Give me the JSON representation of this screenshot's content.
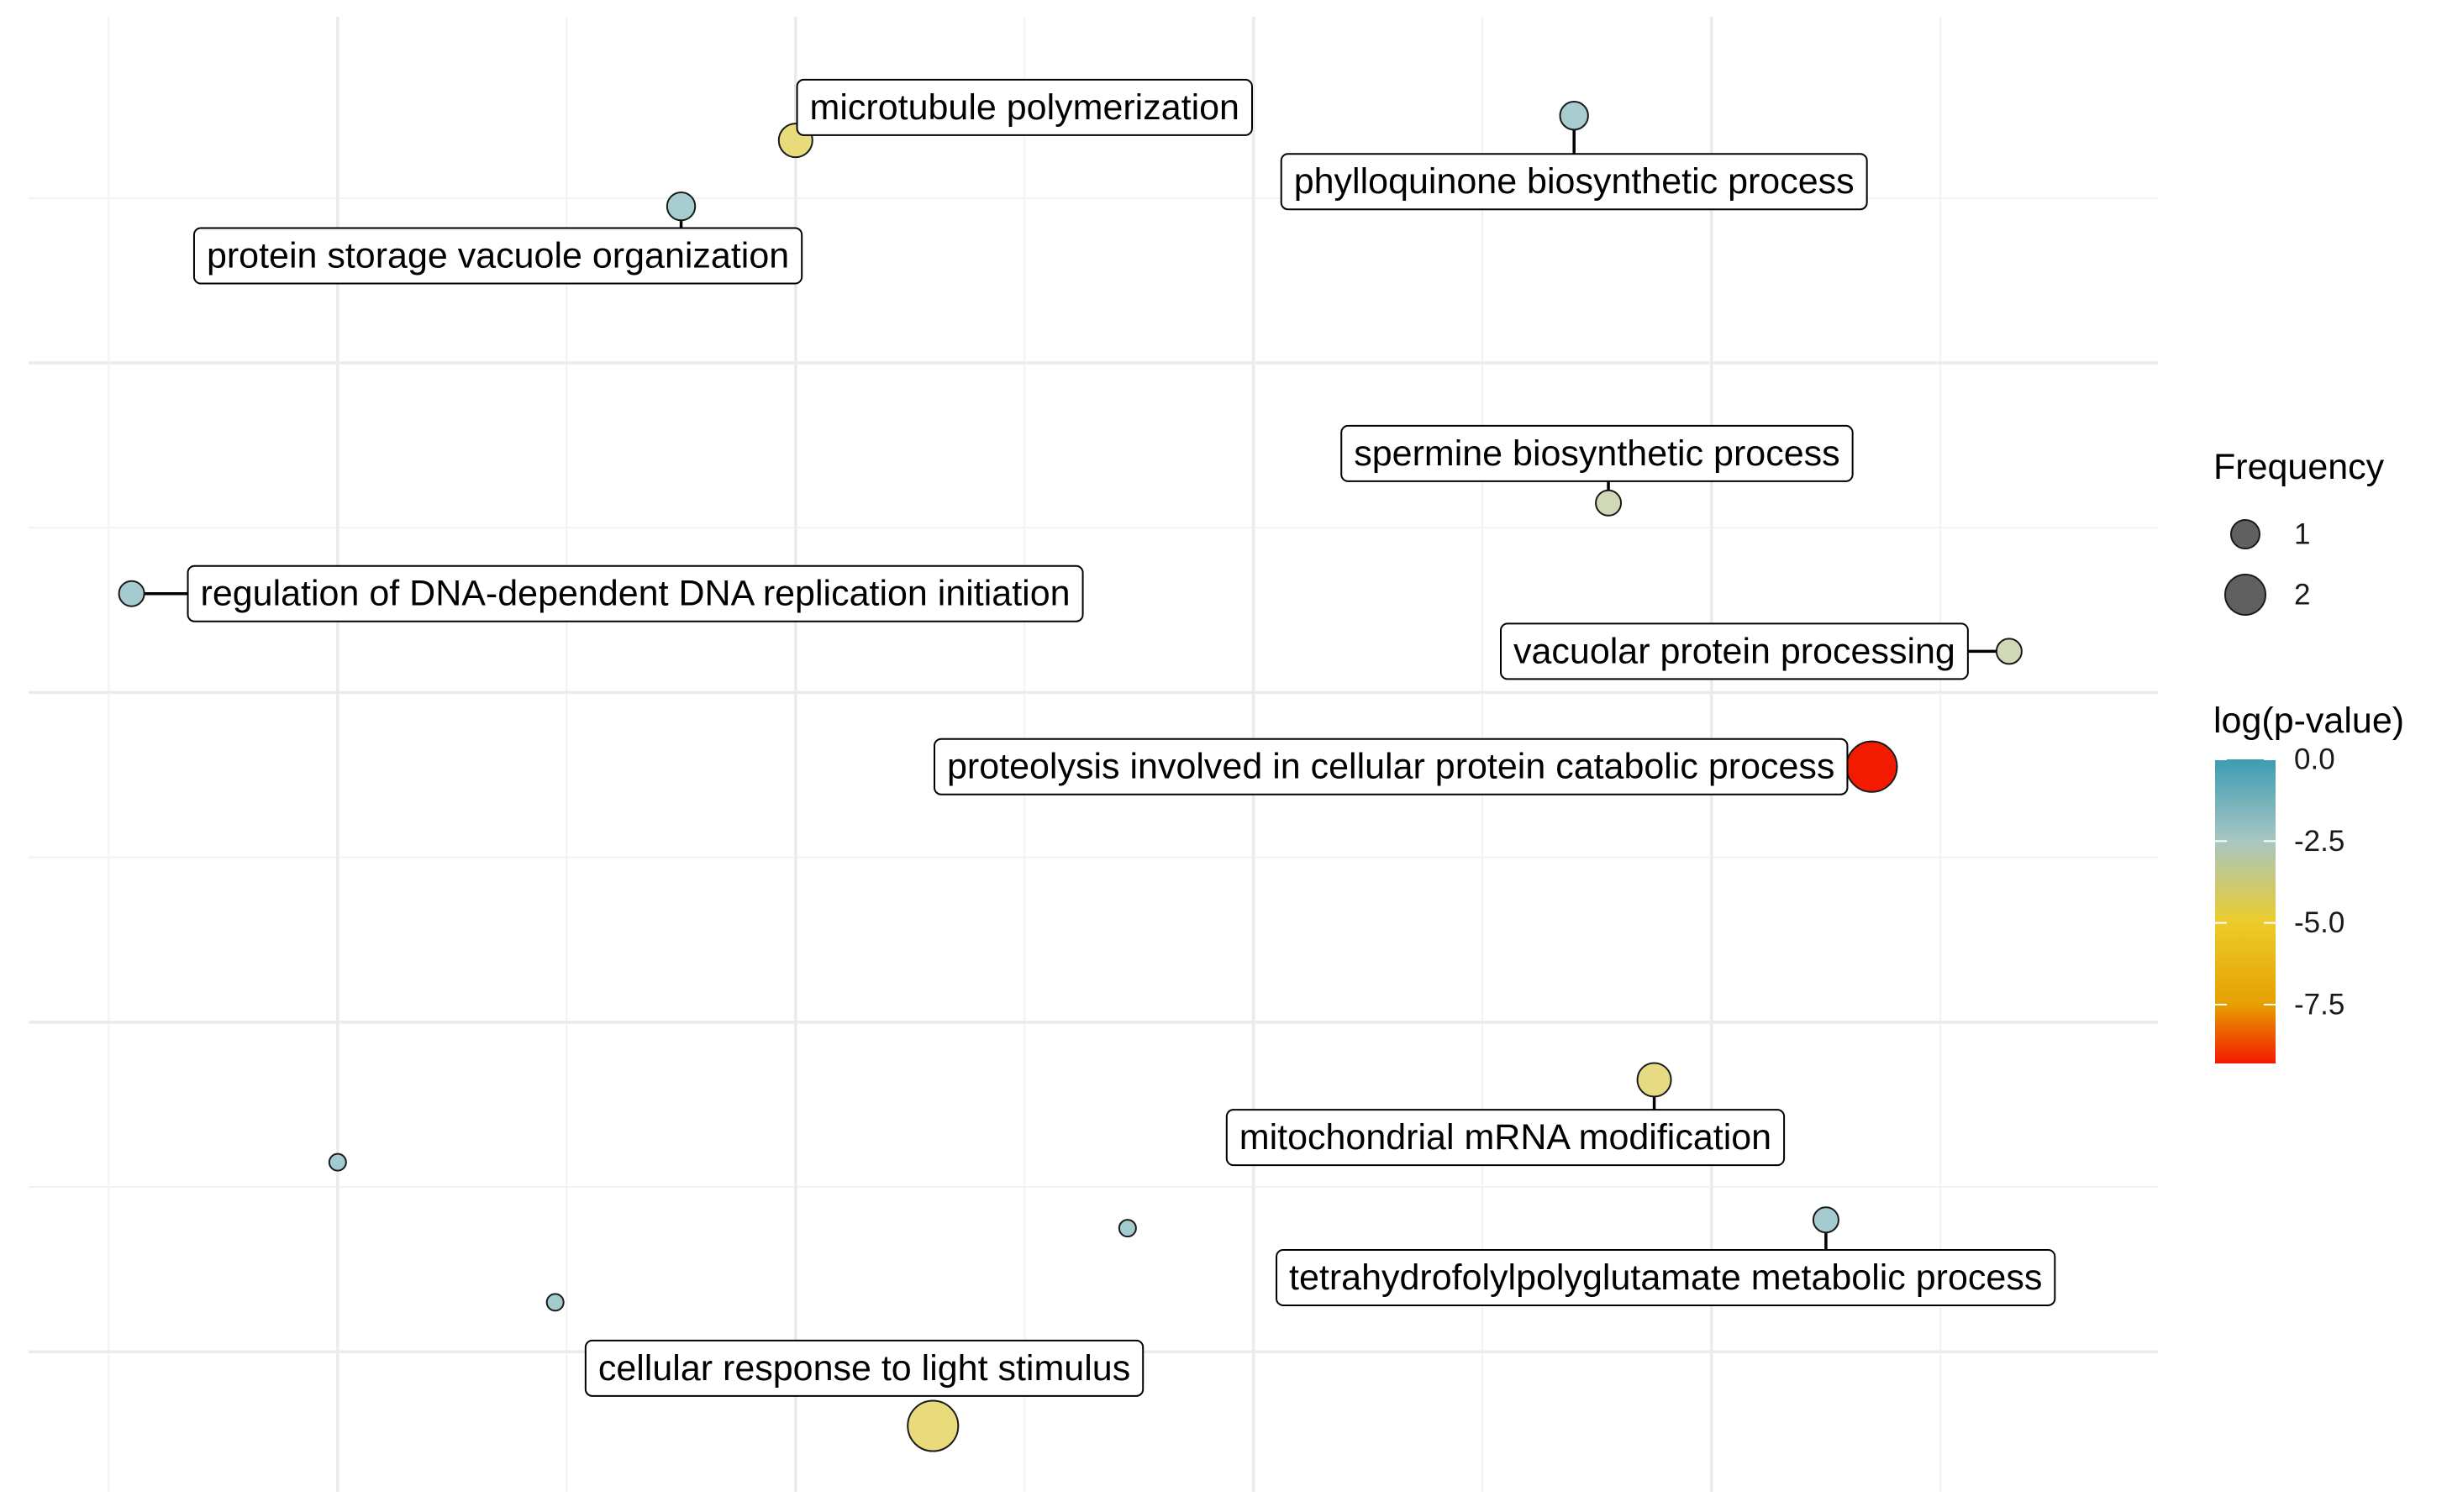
{
  "chart_data": {
    "type": "scatter",
    "title": "",
    "xlabel": "",
    "ylabel": "",
    "grid": true,
    "legend_placement": "right",
    "points": [
      {
        "x": 2.0,
        "y": 8.35,
        "freq": 1.3,
        "logp": -4.6,
        "label": "microtubule polymerization",
        "lx": 3.0,
        "ly": 8.55
      },
      {
        "x": 5.4,
        "y": 8.5,
        "freq": 1.1,
        "logp": -1.6,
        "label": "phylloquinone biosynthetic process",
        "lx": 5.4,
        "ly": 8.1
      },
      {
        "x": 1.5,
        "y": 7.95,
        "freq": 1.1,
        "logp": -1.6,
        "label": "protein storage vacuole organization",
        "lx": 0.7,
        "ly": 7.65
      },
      {
        "x": 5.55,
        "y": 6.15,
        "freq": 1.0,
        "logp": -3.2,
        "label": "spermine biosynthetic process",
        "lx": 5.5,
        "ly": 6.45
      },
      {
        "x": -0.9,
        "y": 5.6,
        "freq": 1.0,
        "logp": -1.5,
        "label": "regulation of DNA-dependent DNA replication initiation",
        "lx": 1.3,
        "ly": 5.6
      },
      {
        "x": 7.3,
        "y": 5.25,
        "freq": 1.0,
        "logp": -3.2,
        "label": "vacuolar protein processing",
        "lx": 6.1,
        "ly": 5.25
      },
      {
        "x": 6.7,
        "y": 4.55,
        "freq": 1.9,
        "logp": -9.3,
        "label": "proteolysis involved in cellular protein catabolic process",
        "lx": 4.6,
        "ly": 4.55
      },
      {
        "x": 5.75,
        "y": 2.65,
        "freq": 1.3,
        "logp": -4.4,
        "label": "mitochondrial mRNA modification",
        "lx": 5.1,
        "ly": 2.3
      },
      {
        "x": 0.0,
        "y": 2.15,
        "freq": 0.7,
        "logp": -1.4,
        "label": "",
        "lx": null,
        "ly": null
      },
      {
        "x": 3.45,
        "y": 1.75,
        "freq": 0.7,
        "logp": -1.4,
        "label": "",
        "lx": null,
        "ly": null
      },
      {
        "x": 6.5,
        "y": 1.8,
        "freq": 1.0,
        "logp": -1.5,
        "label": "tetrahydrofolylpolyglutamate metabolic process",
        "lx": 5.8,
        "ly": 1.45
      },
      {
        "x": 0.95,
        "y": 1.3,
        "freq": 0.7,
        "logp": -1.4,
        "label": "",
        "lx": null,
        "ly": null
      },
      {
        "x": 2.6,
        "y": 0.55,
        "freq": 1.9,
        "logp": -4.6,
        "label": "cellular response to light stimulus",
        "lx": 2.3,
        "ly": 0.9
      }
    ],
    "xlim": [
      -1.35,
      7.95
    ],
    "ylim": [
      0.15,
      9.1
    ],
    "x_major_grid": [
      0,
      2,
      4,
      6
    ],
    "x_minor_grid": [
      -1,
      1,
      3,
      5,
      7
    ],
    "y_major_grid": [
      1,
      3,
      5,
      7
    ],
    "y_minor_grid": [
      0,
      2,
      4,
      6,
      8
    ],
    "legend": {
      "size_title": "Frequency",
      "size_entries": [
        {
          "value": 1,
          "label": "1"
        },
        {
          "value": 2,
          "label": "2"
        }
      ],
      "color_title": "log(p-value)",
      "color_range": [
        -9.3,
        0
      ],
      "color_stops": [
        {
          "value": 0.0,
          "color": "#3D9CB2"
        },
        {
          "value": -2.5,
          "color": "#A8C7C2"
        },
        {
          "value": -5.0,
          "color": "#EBCC2A"
        },
        {
          "value": -7.5,
          "color": "#E69F00"
        },
        {
          "value": -9.3,
          "color": "#F21A00"
        }
      ],
      "color_ticks": [
        {
          "value": 0.0,
          "label": "0.0"
        },
        {
          "value": -2.5,
          "label": "-2.5"
        },
        {
          "value": -5.0,
          "label": "-5.0"
        },
        {
          "value": -7.5,
          "label": "-7.5"
        }
      ]
    }
  }
}
